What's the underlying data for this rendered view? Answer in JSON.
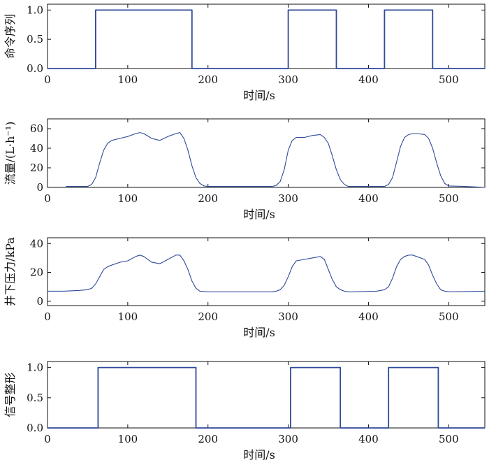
{
  "figure": {
    "line_color": "#2f4a9a"
  },
  "chart_data": [
    {
      "type": "line",
      "ylabel": "命令序列",
      "xlabel": "时间/s",
      "xlim": [
        0,
        545
      ],
      "ylim": [
        0,
        1.1
      ],
      "xticks": [
        0,
        100,
        200,
        300,
        400,
        500
      ],
      "yticks": [
        0,
        0.5,
        1.0
      ],
      "yticklabels": [
        "0.0",
        "0.5",
        "1.0"
      ],
      "grid": false,
      "series": [
        {
          "x": [
            0,
            60,
            60,
            180,
            180,
            300,
            300,
            360,
            360,
            420,
            420,
            480,
            480,
            545
          ],
          "y": [
            0,
            0,
            1,
            1,
            0,
            0,
            1,
            1,
            0,
            0,
            1,
            1,
            0,
            0
          ]
        }
      ]
    },
    {
      "type": "line",
      "ylabel": "流量/(L·h⁻¹)",
      "xlabel": "时间/s",
      "xlim": [
        0,
        545
      ],
      "ylim": [
        0,
        70
      ],
      "xticks": [
        0,
        100,
        200,
        300,
        400,
        500
      ],
      "yticks": [
        0,
        20,
        40,
        60
      ],
      "yticklabels": [
        "0",
        "20",
        "40",
        "60"
      ],
      "grid": false,
      "series": [
        {
          "x": [
            23,
            50,
            55,
            60,
            65,
            70,
            75,
            80,
            90,
            100,
            110,
            115,
            120,
            130,
            140,
            150,
            160,
            165,
            170,
            175,
            180,
            185,
            190,
            195,
            200,
            250,
            280,
            285,
            290,
            295,
            300,
            305,
            310,
            320,
            330,
            340,
            345,
            350,
            355,
            360,
            365,
            370,
            375,
            380,
            420,
            425,
            430,
            435,
            440,
            445,
            450,
            455,
            460,
            470,
            475,
            480,
            485,
            490,
            495,
            500,
            520,
            545
          ],
          "y": [
            1,
            1,
            3,
            10,
            25,
            38,
            45,
            48,
            50,
            52,
            55,
            56,
            55,
            50,
            48,
            52,
            55,
            56,
            50,
            38,
            22,
            10,
            4,
            1.5,
            1,
            1,
            1,
            2,
            6,
            18,
            38,
            48,
            51,
            51,
            53,
            54,
            51,
            45,
            32,
            18,
            8,
            3,
            1,
            1,
            1,
            3,
            10,
            26,
            42,
            51,
            54,
            55,
            55,
            54,
            50,
            40,
            25,
            12,
            4,
            1.5,
            1,
            0
          ]
        }
      ]
    },
    {
      "type": "line",
      "ylabel": "井下压力/kPa",
      "xlabel": "时间/s",
      "xlim": [
        0,
        545
      ],
      "ylim": [
        -3,
        44
      ],
      "xticks": [
        0,
        100,
        200,
        300,
        400,
        500
      ],
      "yticks": [
        0,
        20,
        40
      ],
      "yticklabels": [
        "0",
        "20",
        "40"
      ],
      "grid": false,
      "series": [
        {
          "x": [
            0,
            20,
            40,
            50,
            55,
            60,
            65,
            70,
            75,
            80,
            90,
            100,
            110,
            115,
            120,
            130,
            140,
            150,
            160,
            165,
            170,
            175,
            180,
            185,
            190,
            200,
            250,
            280,
            285,
            290,
            295,
            300,
            305,
            310,
            320,
            330,
            340,
            345,
            350,
            355,
            360,
            365,
            370,
            375,
            380,
            410,
            420,
            425,
            430,
            435,
            440,
            445,
            450,
            455,
            460,
            470,
            475,
            480,
            485,
            490,
            495,
            500,
            545
          ],
          "y": [
            7,
            7,
            7.5,
            8,
            9,
            12,
            17,
            22,
            24,
            25,
            27,
            28,
            31,
            32,
            31,
            27,
            26,
            29,
            32,
            32,
            28,
            22,
            14,
            9,
            7,
            6.5,
            6.5,
            6.5,
            7,
            8,
            11,
            17,
            24,
            28,
            29,
            30,
            31,
            29,
            22,
            15,
            10,
            8,
            7,
            6.5,
            6.5,
            7,
            8,
            10,
            16,
            24,
            29,
            31,
            32,
            32,
            31,
            29,
            25,
            18,
            12,
            8,
            7,
            6.5,
            7
          ]
        }
      ]
    },
    {
      "type": "line",
      "ylabel": "信号整形",
      "xlabel": "时间/s",
      "xlim": [
        0,
        545
      ],
      "ylim": [
        0,
        1.1
      ],
      "xticks": [
        0,
        100,
        200,
        300,
        400,
        500
      ],
      "yticks": [
        0,
        0.5,
        1.0
      ],
      "yticklabels": [
        "0.0",
        "0.5",
        "1.0"
      ],
      "grid": false,
      "series": [
        {
          "x": [
            0,
            63,
            63,
            185,
            185,
            303,
            303,
            365,
            365,
            425,
            425,
            487,
            487,
            545
          ],
          "y": [
            0,
            0,
            1,
            1,
            0,
            0,
            1,
            1,
            0,
            0,
            1,
            1,
            0,
            0
          ]
        }
      ]
    }
  ]
}
